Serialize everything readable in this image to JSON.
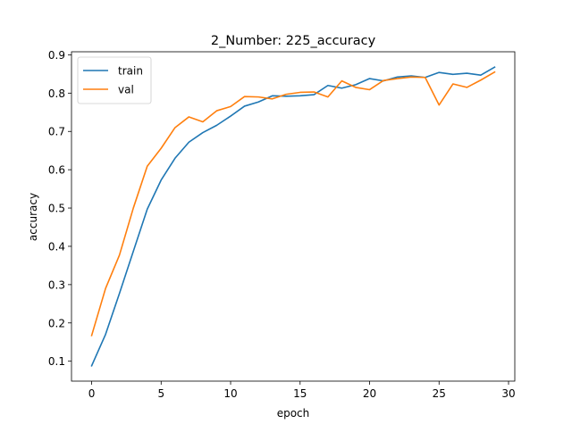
{
  "chart_data": {
    "type": "line",
    "title": "2_Number: 225_accuracy",
    "xlabel": "epoch",
    "ylabel": "accuracy",
    "xlim": [
      -1.45,
      30.45
    ],
    "ylim": [
      0.048,
      0.908
    ],
    "xticks": [
      0,
      5,
      10,
      15,
      20,
      25,
      30
    ],
    "yticks": [
      0.1,
      0.2,
      0.3,
      0.4,
      0.5,
      0.6,
      0.7,
      0.8,
      0.9
    ],
    "x": [
      0,
      1,
      2,
      3,
      4,
      5,
      6,
      7,
      8,
      9,
      10,
      11,
      12,
      13,
      14,
      15,
      16,
      17,
      18,
      19,
      20,
      21,
      22,
      23,
      24,
      25,
      26,
      27,
      28,
      29
    ],
    "legend_position": "upper-left",
    "series": [
      {
        "name": "train",
        "color": "#1f77b4",
        "values": [
          0.088,
          0.17,
          0.277,
          0.387,
          0.497,
          0.573,
          0.63,
          0.672,
          0.697,
          0.716,
          0.74,
          0.766,
          0.777,
          0.793,
          0.792,
          0.793,
          0.796,
          0.82,
          0.813,
          0.822,
          0.838,
          0.832,
          0.842,
          0.845,
          0.841,
          0.854,
          0.849,
          0.852,
          0.847,
          0.868
        ]
      },
      {
        "name": "val",
        "color": "#ff7f0e",
        "values": [
          0.167,
          0.29,
          0.377,
          0.5,
          0.609,
          0.656,
          0.71,
          0.738,
          0.725,
          0.754,
          0.765,
          0.791,
          0.79,
          0.785,
          0.797,
          0.802,
          0.803,
          0.79,
          0.832,
          0.815,
          0.809,
          0.833,
          0.838,
          0.842,
          0.841,
          0.769,
          0.824,
          0.815,
          0.834,
          0.855
        ]
      }
    ]
  }
}
